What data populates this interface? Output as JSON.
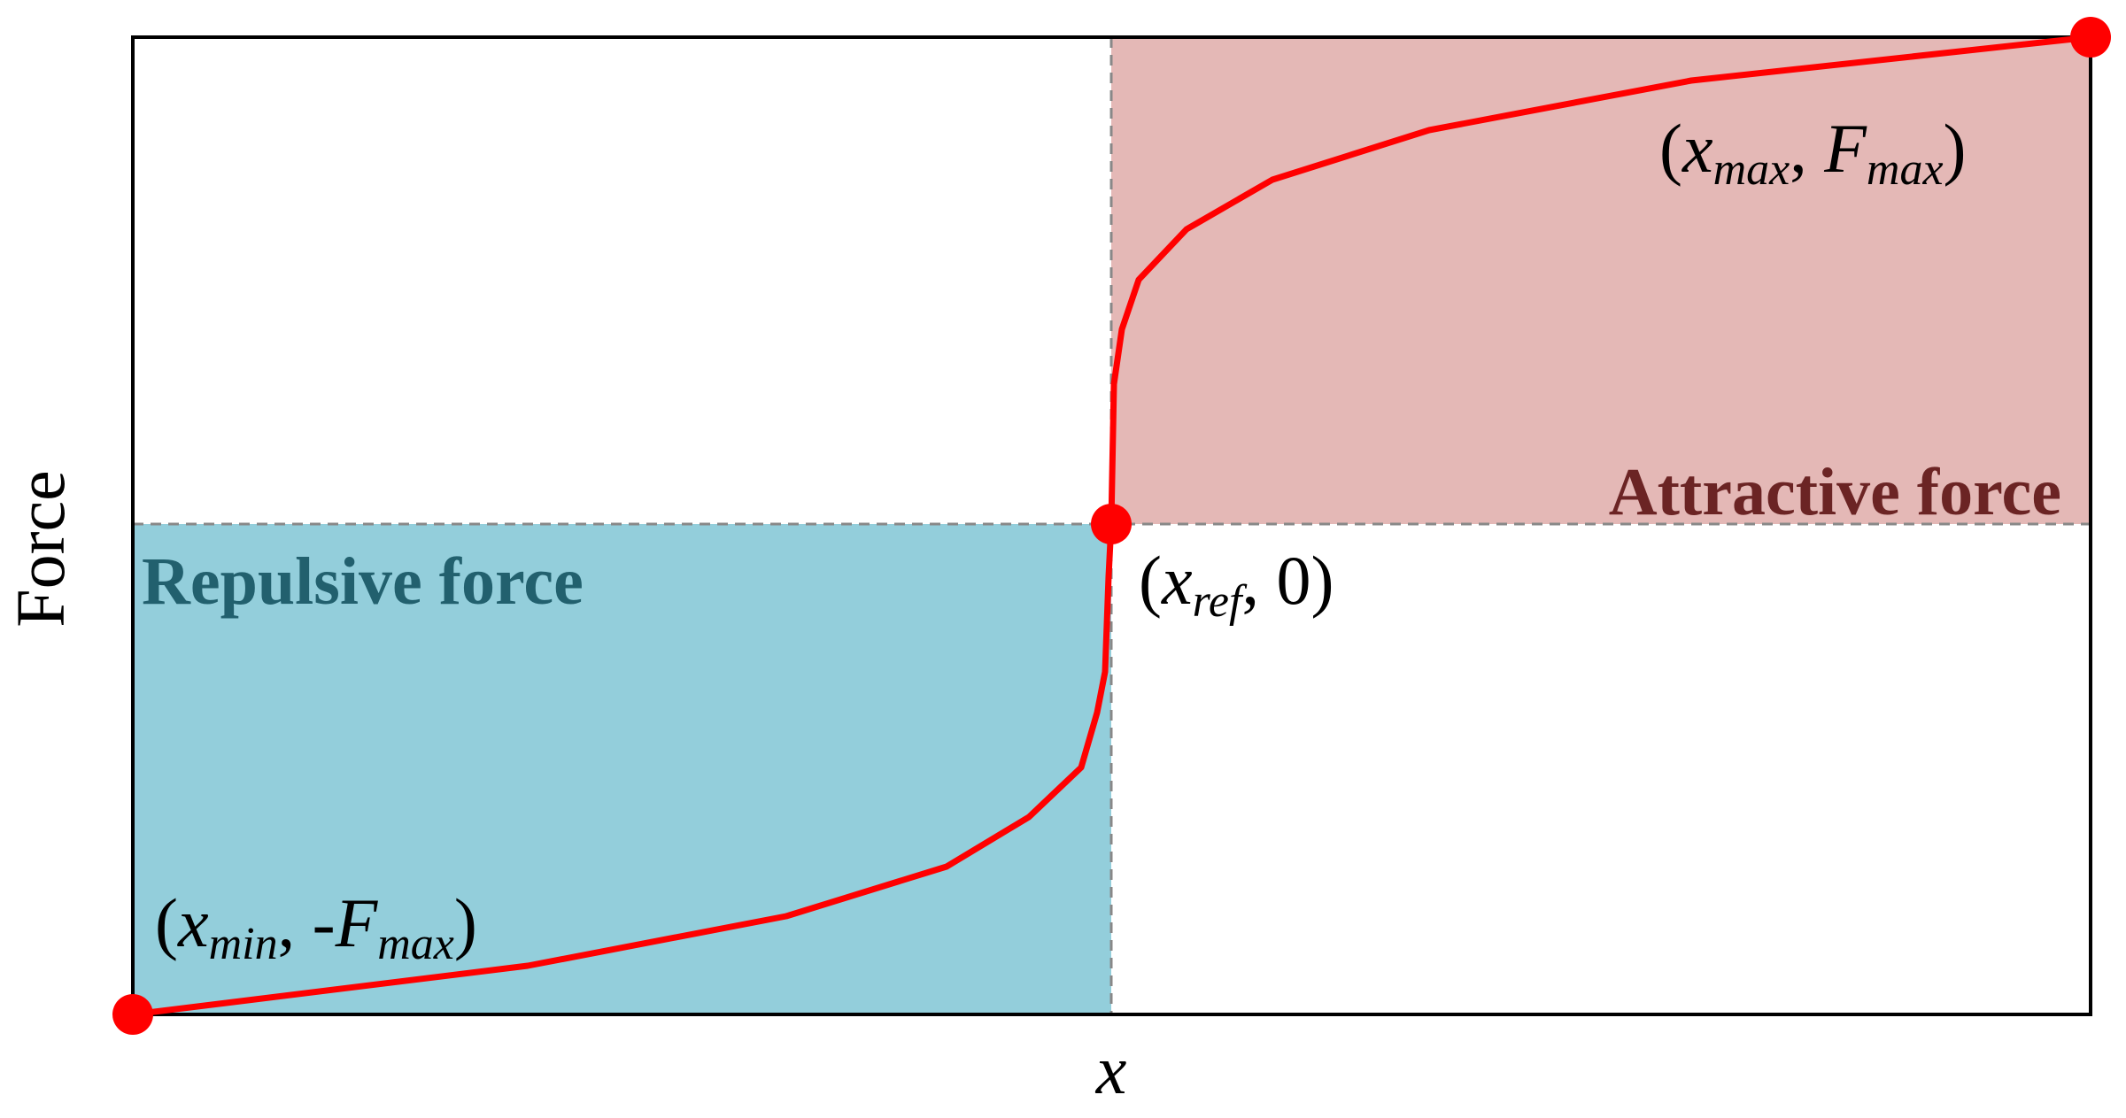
{
  "axes": {
    "y_label": "Force",
    "x_label": "x"
  },
  "regions": {
    "attractive": "Attractive force",
    "repulsive": "Repulsive force"
  },
  "points": [
    {
      "open": "(",
      "var": "x",
      "sub": "min",
      "sep": ", -",
      "f": "F",
      "fsub": "max",
      "close": ")"
    },
    {
      "open": "(",
      "var": "x",
      "sub": "ref",
      "sep": ", 0)"
    },
    {
      "open": "(",
      "var": "x",
      "sub": "max",
      "sep": ", ",
      "f": "F",
      "fsub": "max",
      "close": ")"
    }
  ]
}
